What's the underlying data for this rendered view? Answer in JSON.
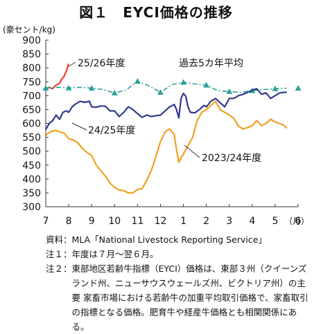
{
  "figure": {
    "title": "図１　EYCI価格の推移"
  },
  "chart_data": {
    "type": "line",
    "ylabel": "(豪セント/kg)",
    "xunit": "（月）",
    "ylim": [
      300,
      900
    ],
    "yticks": [
      300,
      350,
      400,
      450,
      500,
      550,
      600,
      650,
      700,
      750,
      800,
      850,
      900
    ],
    "categories": [
      "7",
      "8",
      "9",
      "10",
      "11",
      "12",
      "1",
      "2",
      "3",
      "4",
      "5",
      "6"
    ],
    "grid": false,
    "series": [
      {
        "name": "25/26年度",
        "color": "#e8432a",
        "style": "solid",
        "points": [
          [
            7.0,
            724
          ],
          [
            7.15,
            730
          ],
          [
            7.3,
            725
          ],
          [
            7.45,
            738
          ],
          [
            7.6,
            745
          ],
          [
            7.7,
            760
          ],
          [
            7.8,
            770
          ],
          [
            7.9,
            790
          ],
          [
            8.0,
            815
          ]
        ]
      },
      {
        "name": "過去5カ年平均",
        "color": "#2aa198",
        "style": "dashdot",
        "points": [
          [
            7.0,
            727
          ],
          [
            7.5,
            730
          ],
          [
            8.0,
            728
          ],
          [
            8.5,
            730
          ],
          [
            9.0,
            727
          ],
          [
            9.5,
            722
          ],
          [
            10.0,
            710
          ],
          [
            10.5,
            720
          ],
          [
            11.0,
            752
          ],
          [
            11.5,
            735
          ],
          [
            12.0,
            712
          ],
          [
            12.5,
            740
          ],
          [
            13.0,
            748
          ],
          [
            13.5,
            742
          ],
          [
            14.0,
            738
          ],
          [
            14.5,
            718
          ],
          [
            15.0,
            715
          ],
          [
            15.5,
            712
          ],
          [
            16.0,
            718
          ],
          [
            16.5,
            722
          ],
          [
            17.0,
            725
          ],
          [
            17.5,
            727
          ]
        ],
        "markers": [
          [
            7.0,
            727
          ],
          [
            8.0,
            728
          ],
          [
            9.0,
            727
          ],
          [
            10.0,
            710
          ],
          [
            11.0,
            752
          ],
          [
            12.0,
            712
          ],
          [
            13.0,
            748
          ],
          [
            14.0,
            738
          ],
          [
            15.0,
            715
          ],
          [
            16.0,
            718
          ],
          [
            17.0,
            725
          ],
          [
            18.0,
            727
          ]
        ]
      },
      {
        "name": "24/25年度",
        "color": "#2e3a8c",
        "style": "solid",
        "points": [
          [
            7.0,
            578
          ],
          [
            7.15,
            600
          ],
          [
            7.3,
            610
          ],
          [
            7.45,
            630
          ],
          [
            7.6,
            615
          ],
          [
            7.75,
            640
          ],
          [
            7.9,
            645
          ],
          [
            8.0,
            640
          ],
          [
            8.15,
            660
          ],
          [
            8.3,
            670
          ],
          [
            8.5,
            680
          ],
          [
            8.7,
            676
          ],
          [
            8.9,
            680
          ],
          [
            9.0,
            660
          ],
          [
            9.2,
            658
          ],
          [
            9.4,
            663
          ],
          [
            9.6,
            662
          ],
          [
            9.8,
            645
          ],
          [
            10.0,
            645
          ],
          [
            10.2,
            625
          ],
          [
            10.4,
            640
          ],
          [
            10.6,
            660
          ],
          [
            10.8,
            650
          ],
          [
            11.0,
            635
          ],
          [
            11.2,
            622
          ],
          [
            11.4,
            630
          ],
          [
            11.6,
            625
          ],
          [
            11.8,
            628
          ],
          [
            12.0,
            630
          ],
          [
            12.2,
            645
          ],
          [
            12.4,
            660
          ],
          [
            12.6,
            668
          ],
          [
            12.7,
            650
          ],
          [
            12.8,
            620
          ],
          [
            12.9,
            690
          ],
          [
            13.0,
            708
          ],
          [
            13.1,
            698
          ],
          [
            13.2,
            660
          ],
          [
            13.3,
            640
          ],
          [
            13.5,
            638
          ],
          [
            13.7,
            650
          ],
          [
            13.9,
            665
          ],
          [
            14.0,
            660
          ],
          [
            14.2,
            680
          ],
          [
            14.4,
            690
          ],
          [
            14.6,
            675
          ],
          [
            14.8,
            660
          ],
          [
            15.0,
            690
          ],
          [
            15.2,
            690
          ],
          [
            15.4,
            700
          ],
          [
            15.6,
            705
          ],
          [
            15.8,
            712
          ],
          [
            16.0,
            720
          ],
          [
            16.2,
            725
          ],
          [
            16.4,
            705
          ],
          [
            16.6,
            710
          ],
          [
            16.8,
            690
          ],
          [
            17.0,
            700
          ],
          [
            17.2,
            710
          ],
          [
            17.4,
            712
          ],
          [
            17.5,
            712
          ]
        ]
      },
      {
        "name": "2023/24年度",
        "color": "#f0a020",
        "style": "solid",
        "points": [
          [
            7.0,
            558
          ],
          [
            7.2,
            570
          ],
          [
            7.4,
            575
          ],
          [
            7.6,
            570
          ],
          [
            7.8,
            565
          ],
          [
            8.0,
            545
          ],
          [
            8.2,
            540
          ],
          [
            8.4,
            530
          ],
          [
            8.6,
            510
          ],
          [
            8.8,
            495
          ],
          [
            9.0,
            485
          ],
          [
            9.2,
            450
          ],
          [
            9.4,
            430
          ],
          [
            9.6,
            410
          ],
          [
            9.8,
            385
          ],
          [
            10.0,
            370
          ],
          [
            10.2,
            360
          ],
          [
            10.4,
            358
          ],
          [
            10.6,
            350
          ],
          [
            10.8,
            350
          ],
          [
            11.0,
            362
          ],
          [
            11.2,
            365
          ],
          [
            11.4,
            395
          ],
          [
            11.6,
            430
          ],
          [
            11.8,
            480
          ],
          [
            12.0,
            535
          ],
          [
            12.2,
            570
          ],
          [
            12.4,
            580
          ],
          [
            12.6,
            560
          ],
          [
            12.7,
            505
          ],
          [
            12.8,
            460
          ],
          [
            13.0,
            490
          ],
          [
            13.2,
            520
          ],
          [
            13.4,
            550
          ],
          [
            13.6,
            610
          ],
          [
            13.8,
            640
          ],
          [
            14.0,
            650
          ],
          [
            14.2,
            665
          ],
          [
            14.4,
            680
          ],
          [
            14.6,
            650
          ],
          [
            14.8,
            640
          ],
          [
            15.0,
            630
          ],
          [
            15.2,
            618
          ],
          [
            15.4,
            590
          ],
          [
            15.6,
            580
          ],
          [
            15.8,
            585
          ],
          [
            16.0,
            592
          ],
          [
            16.2,
            610
          ],
          [
            16.4,
            592
          ],
          [
            16.6,
            600
          ],
          [
            16.8,
            615
          ],
          [
            17.0,
            605
          ],
          [
            17.2,
            600
          ],
          [
            17.4,
            592
          ],
          [
            17.5,
            582
          ]
        ]
      }
    ],
    "annotations": [
      {
        "text": "25/26年度",
        "target": "25/26年度"
      },
      {
        "text": "過去5カ年平均",
        "target": "過去5カ年平均"
      },
      {
        "text": "24/25年度",
        "target": "24/25年度"
      },
      {
        "text": "2023/24年度",
        "target": "2023/24年度"
      }
    ]
  },
  "notes": [
    {
      "label": "資料：",
      "text": "MLA「National Livestock Reporting Service」"
    },
    {
      "label": "注１：",
      "text": "年度は７月～翌６月。"
    },
    {
      "label": "注２：",
      "text": "東部地区若齢牛指標（EYCI）価格は、東部３州（クイーンズランド州、ニューサウスウェールズ州、ビクトリア州）の主要 家畜市場における若齢牛の加重平均取引価格で、家畜取引の指標となる価格。肥育牛や経産牛価格とも相関関係にある。"
    }
  ]
}
